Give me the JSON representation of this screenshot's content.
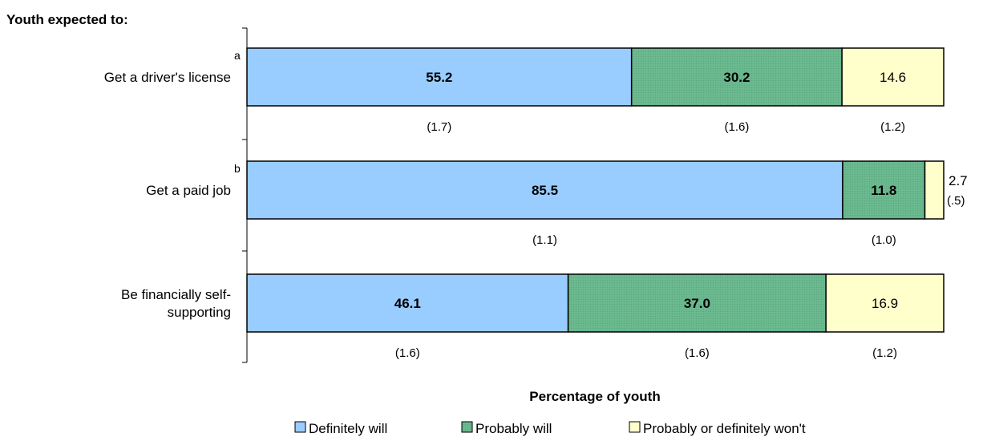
{
  "chart_data": {
    "type": "bar",
    "orientation": "horizontal",
    "stacked": true,
    "title": "Youth expected to:",
    "xlabel": "Percentage of youth",
    "xlim": [
      0,
      100
    ],
    "grid": false,
    "legend_position": "bottom",
    "categories": [
      {
        "label_lines": [
          "Get a driver's license"
        ],
        "footnote": "a"
      },
      {
        "label_lines": [
          "Get a paid job"
        ],
        "footnote": "b"
      },
      {
        "label_lines": [
          "Be financially self-",
          "supporting"
        ],
        "footnote": ""
      }
    ],
    "series": [
      {
        "name": "Definitely will",
        "color": "#99ccff",
        "bold": true,
        "values": [
          55.2,
          85.5,
          46.1
        ],
        "labels": [
          "55.2",
          "85.5",
          "46.1"
        ],
        "errors": [
          "(1.7)",
          "(1.1)",
          "(1.6)"
        ]
      },
      {
        "name": "Probably will",
        "color": "#6bb98f",
        "bold": true,
        "values": [
          30.2,
          11.8,
          37.0
        ],
        "labels": [
          "30.2",
          "11.8",
          "37.0"
        ],
        "errors": [
          "(1.6)",
          "(1.0)",
          "(1.6)"
        ]
      },
      {
        "name": "Probably or definitely won't",
        "color": "#ffffcc",
        "bold": false,
        "values": [
          14.6,
          2.7,
          16.9
        ],
        "labels": [
          "14.6",
          "2.7",
          "16.9"
        ],
        "errors": [
          "(1.2)",
          "(.5)",
          "(1.2)"
        ]
      }
    ]
  }
}
